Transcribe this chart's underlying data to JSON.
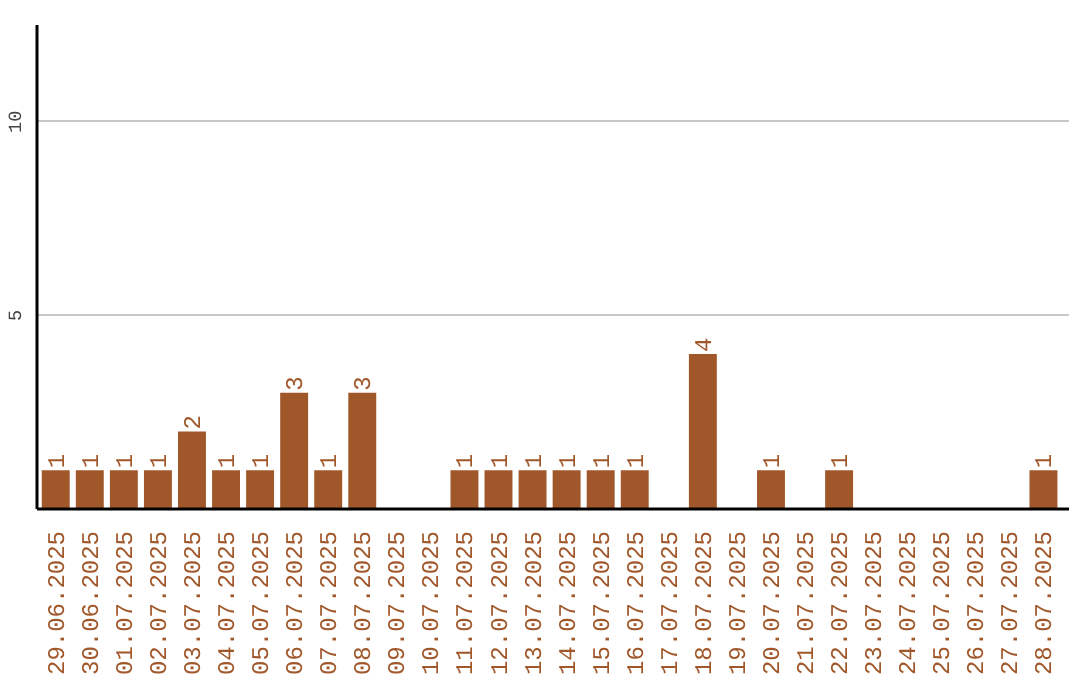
{
  "chart_data": {
    "type": "bar",
    "categories": [
      "29.06.2025",
      "30.06.2025",
      "01.07.2025",
      "02.07.2025",
      "03.07.2025",
      "04.07.2025",
      "05.07.2025",
      "06.07.2025",
      "07.07.2025",
      "08.07.2025",
      "09.07.2025",
      "10.07.2025",
      "11.07.2025",
      "12.07.2025",
      "13.07.2025",
      "14.07.2025",
      "15.07.2025",
      "16.07.2025",
      "17.07.2025",
      "18.07.2025",
      "19.07.2025",
      "20.07.2025",
      "21.07.2025",
      "22.07.2025",
      "23.07.2025",
      "24.07.2025",
      "25.07.2025",
      "26.07.2025",
      "27.07.2025",
      "28.07.2025"
    ],
    "values": [
      1,
      1,
      1,
      1,
      2,
      1,
      1,
      3,
      1,
      3,
      0,
      0,
      1,
      1,
      1,
      1,
      1,
      1,
      0,
      4,
      0,
      1,
      0,
      1,
      0,
      0,
      0,
      0,
      0,
      1
    ],
    "value_labels": [
      "1",
      "1",
      "1",
      "1",
      "2",
      "1",
      "1",
      "3",
      "1",
      "3",
      null,
      null,
      "1",
      "1",
      "1",
      "1",
      "1",
      "1",
      null,
      "4",
      null,
      "1",
      null,
      "1",
      null,
      null,
      null,
      null,
      null,
      "1"
    ],
    "color": "#a0572a",
    "ylim": [
      0,
      12.5
    ],
    "yticks": [
      5,
      10
    ],
    "grid": "y"
  }
}
